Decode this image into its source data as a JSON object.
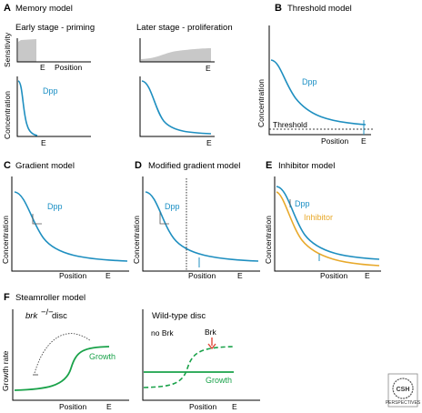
{
  "panels": {
    "A": {
      "letter": "A",
      "title": "Memory model",
      "early_title": "Early stage - priming",
      "later_title": "Later stage - proliferation",
      "sensitivity_label": "Sensitivity",
      "position_label": "Position",
      "concentration_label": "Concentration",
      "dpp_label": "Dpp",
      "e_label": "E"
    },
    "B": {
      "letter": "B",
      "title": "Threshold model",
      "dpp_label": "Dpp",
      "threshold_label": "Threshold",
      "concentration_label": "Concentration",
      "position_label": "Position",
      "e_label": "E"
    },
    "C": {
      "letter": "C",
      "title": "Gradient model",
      "dpp_label": "Dpp",
      "concentration_label": "Concentration",
      "position_label": "Position",
      "e_label": "E"
    },
    "D": {
      "letter": "D",
      "title": "Modified gradient model",
      "dpp_label": "Dpp",
      "concentration_label": "Concentration",
      "position_label": "Position",
      "e_label": "E"
    },
    "E": {
      "letter": "E",
      "title": "Inhibitor model",
      "dpp_label": "Dpp",
      "inhibitor_label": "Inhibitor",
      "concentration_label": "Concentration",
      "position_label": "Position",
      "e_label": "E"
    },
    "F": {
      "letter": "F",
      "title": "Steamroller model",
      "brk_gene": "brk",
      "brk_suffix": "disc",
      "wildtype_title": "Wild-type disc",
      "no_brk_label": "no Brk",
      "brk_label": "Brk",
      "growth_label": "Growth",
      "growth_rate_label": "Growth rate",
      "position_label": "Position",
      "e_label": "E"
    }
  },
  "logo": {
    "text": "CSH",
    "subtext": "PERSPECTIVES"
  },
  "colors": {
    "dpp": "#1f8fc0",
    "growth": "#1aa24a",
    "inhibitor": "#e8a92b",
    "sensitivity_fill": "#c8c8c8"
  }
}
